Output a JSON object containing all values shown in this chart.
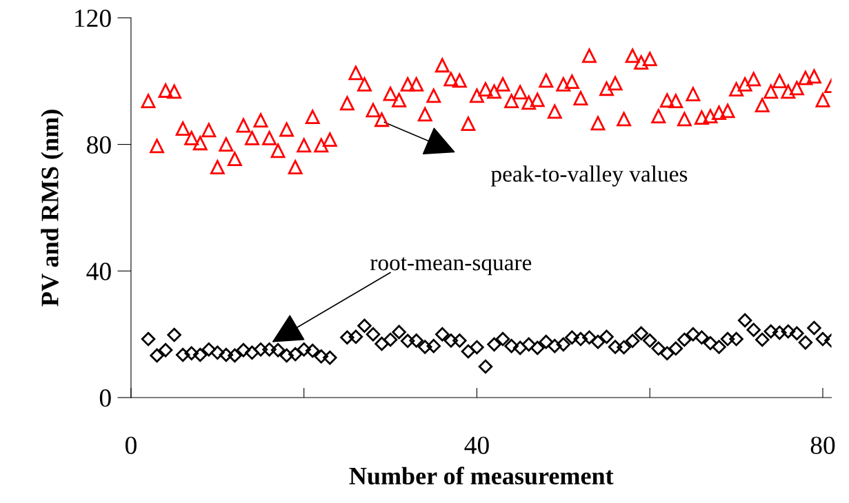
{
  "chart_data": {
    "type": "scatter",
    "xlabel": "Number of measurement",
    "ylabel": "PV and RMS (nm)",
    "xlim": [
      0,
      81
    ],
    "ylim": [
      0,
      120
    ],
    "xticks": [
      0,
      {
        "value": 20,
        "label": null
      },
      40,
      {
        "value": 60,
        "label": null
      },
      80
    ],
    "yticks": [
      0,
      40,
      80,
      120
    ],
    "grid": false,
    "legend": false,
    "x": [
      2,
      3,
      4,
      5,
      6,
      7,
      8,
      9,
      10,
      11,
      12,
      13,
      14,
      15,
      16,
      17,
      18,
      19,
      20,
      21,
      22,
      23,
      25,
      26,
      27,
      28,
      29,
      30,
      31,
      32,
      33,
      34,
      35,
      36,
      37,
      38,
      39,
      40,
      41,
      42,
      43,
      44,
      45,
      46,
      47,
      48,
      49,
      50,
      51,
      52,
      53,
      54,
      55,
      56,
      57,
      58,
      59,
      60,
      61,
      62,
      63,
      64,
      65,
      66,
      67,
      68,
      69,
      70,
      71,
      72,
      73,
      74,
      75,
      76,
      77,
      78,
      79,
      80,
      81
    ],
    "series": [
      {
        "color": "#ff0000",
        "marker": "triangle",
        "values": [
          93.7,
          79.5,
          97,
          96.7,
          85,
          82,
          80.4,
          84.5,
          72.8,
          80,
          75.4,
          86,
          82,
          87.6,
          82,
          78,
          84.7,
          72.8,
          79.7,
          88.7,
          79.7,
          81.5,
          93,
          102.6,
          99,
          90.8,
          87.8,
          96,
          94,
          99,
          99,
          89.5,
          95.4,
          105,
          100.6,
          100.2,
          86.5,
          95.4,
          97.4,
          96.7,
          99,
          93.7,
          96.5,
          93.2,
          94.1,
          100.2,
          90.4,
          99,
          99.8,
          94.6,
          108,
          86.7,
          97.6,
          99.3,
          88,
          108,
          105.9,
          107,
          88.9,
          93.9,
          93.7,
          88,
          95.9,
          88.5,
          88.9,
          90,
          90.6,
          97.4,
          99,
          100.6,
          92.4,
          96.7,
          100,
          96.7,
          97.8,
          101,
          101.5,
          94,
          98.5
        ]
      },
      {
        "color": "#000000",
        "marker": "diamond",
        "values": [
          18.5,
          13.3,
          15,
          19.8,
          13.5,
          14,
          13.5,
          15.2,
          14.2,
          13.5,
          13.3,
          15,
          14.2,
          15.2,
          15.2,
          15,
          13.3,
          13.7,
          15.2,
          14.8,
          13,
          12.6,
          19,
          19.2,
          22.7,
          20,
          17,
          18.3,
          20.7,
          17.9,
          18,
          16,
          16.3,
          20,
          18,
          18,
          14.6,
          15.9,
          9.8,
          16.8,
          18.5,
          16.3,
          15.7,
          16.8,
          15.7,
          17.6,
          16.3,
          16.8,
          19,
          18.5,
          19,
          17.6,
          19.2,
          16,
          15.9,
          17.9,
          20.3,
          18,
          15.5,
          14,
          15.5,
          18.3,
          20,
          19,
          17.2,
          16,
          18.5,
          18.5,
          24.4,
          21.4,
          18.3,
          20.9,
          20.5,
          20.9,
          20.3,
          17.4,
          22,
          18.5,
          18
        ]
      }
    ],
    "annotations": [
      "peak-to-valley values",
      "root-mean-square"
    ]
  }
}
